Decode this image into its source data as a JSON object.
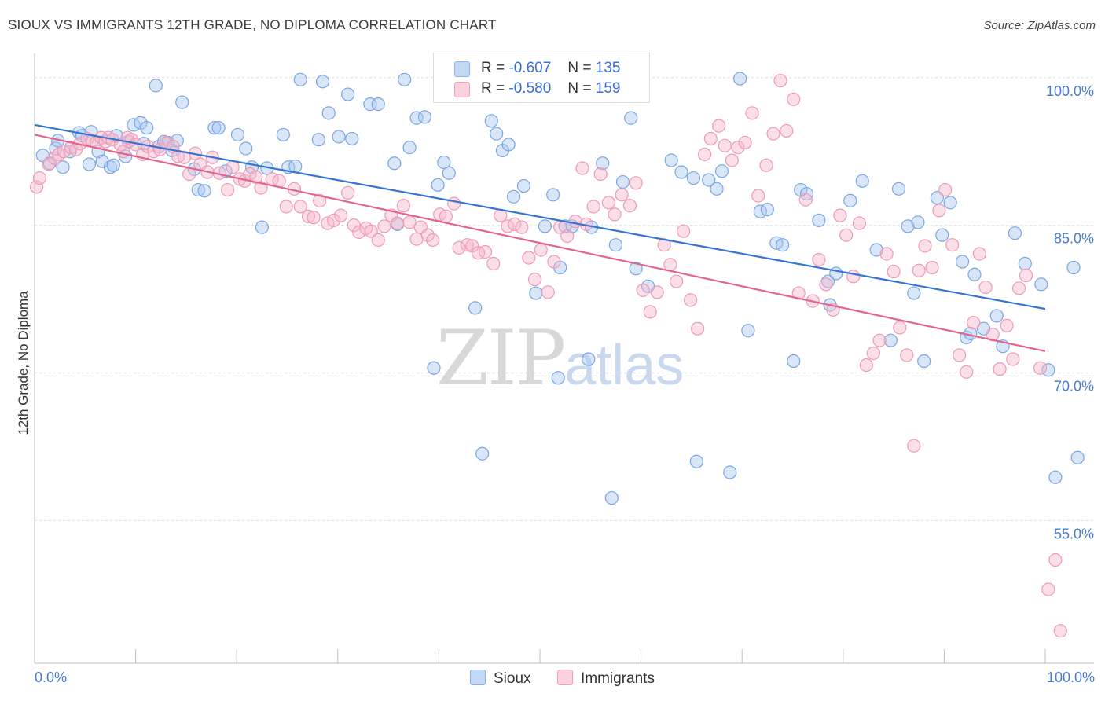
{
  "title": "SIOUX VS IMMIGRANTS 12TH GRADE, NO DIPLOMA CORRELATION CHART",
  "source": "Source: ZipAtlas.com",
  "watermark": {
    "zip": "ZIP",
    "atlas": "atlas"
  },
  "legend": {
    "r_label": "R =",
    "n_label": "N =",
    "rows": [
      {
        "series": "Sioux",
        "r": "-0.607",
        "n": "135",
        "color": "#a9c7f0"
      },
      {
        "series": "Immigrants",
        "r": "-0.580",
        "n": "159",
        "color": "#f7b8cc"
      }
    ]
  },
  "chart_data": {
    "type": "scatter",
    "title": "SIOUX VS IMMIGRANTS 12TH GRADE, NO DIPLOMA CORRELATION CHART",
    "xlabel": "",
    "ylabel": "12th Grade, No Diploma",
    "xlim": [
      0,
      100
    ],
    "ylim": [
      40.5,
      101.5
    ],
    "x_tick_labels": [
      "0.0%",
      "100.0%"
    ],
    "y_ticks": [
      100,
      85,
      70,
      55
    ],
    "y_tick_labels": [
      "100.0%",
      "85.0%",
      "70.0%",
      "55.0%"
    ],
    "grid": true,
    "legend_position": "top-center",
    "series": [
      {
        "name": "Sioux",
        "color": "#a9c7f0",
        "line_color": "#3575d4",
        "trend": {
          "x": [
            0,
            100
          ],
          "y": [
            95.2,
            76.5
          ]
        },
        "points": [
          [
            0.8,
            92.1
          ],
          [
            1.5,
            91.3
          ],
          [
            2.1,
            92.8
          ],
          [
            2.3,
            93.6
          ],
          [
            2.8,
            90.9
          ],
          [
            3.5,
            92.5
          ],
          [
            4.4,
            94.4
          ],
          [
            4.7,
            94.1
          ],
          [
            5.4,
            91.2
          ],
          [
            5.6,
            94.5
          ],
          [
            6.3,
            92.5
          ],
          [
            6.7,
            91.5
          ],
          [
            7.5,
            90.9
          ],
          [
            7.8,
            91.1
          ],
          [
            8.1,
            94.1
          ],
          [
            9.0,
            92.0
          ],
          [
            9.3,
            93.5
          ],
          [
            9.8,
            95.2
          ],
          [
            10.5,
            95.4
          ],
          [
            10.8,
            93.3
          ],
          [
            11.1,
            94.9
          ],
          [
            12.0,
            99.2
          ],
          [
            12.3,
            93.0
          ],
          [
            12.8,
            93.5
          ],
          [
            13.2,
            93.4
          ],
          [
            13.6,
            92.6
          ],
          [
            14.1,
            93.6
          ],
          [
            14.6,
            97.5
          ],
          [
            15.8,
            90.7
          ],
          [
            16.2,
            88.6
          ],
          [
            16.8,
            88.5
          ],
          [
            17.8,
            94.9
          ],
          [
            18.2,
            94.9
          ],
          [
            18.9,
            90.5
          ],
          [
            20.1,
            94.2
          ],
          [
            20.9,
            92.8
          ],
          [
            21.5,
            90.9
          ],
          [
            22.5,
            84.8
          ],
          [
            23.0,
            90.8
          ],
          [
            24.6,
            94.2
          ],
          [
            25.1,
            90.9
          ],
          [
            25.8,
            91.0
          ],
          [
            26.3,
            99.8
          ],
          [
            28.1,
            93.7
          ],
          [
            28.5,
            99.6
          ],
          [
            29.1,
            96.4
          ],
          [
            30.1,
            94.0
          ],
          [
            31.0,
            98.3
          ],
          [
            31.4,
            93.8
          ],
          [
            33.2,
            97.3
          ],
          [
            34.0,
            97.3
          ],
          [
            35.6,
            91.3
          ],
          [
            35.9,
            85.1
          ],
          [
            36.6,
            99.8
          ],
          [
            37.1,
            92.9
          ],
          [
            37.8,
            95.9
          ],
          [
            38.6,
            96.0
          ],
          [
            39.5,
            70.5
          ],
          [
            39.9,
            89.1
          ],
          [
            40.5,
            91.4
          ],
          [
            41.0,
            90.3
          ],
          [
            43.6,
            76.6
          ],
          [
            44.3,
            61.8
          ],
          [
            45.2,
            95.6
          ],
          [
            45.7,
            94.3
          ],
          [
            46.3,
            92.6
          ],
          [
            46.9,
            93.2
          ],
          [
            47.4,
            87.9
          ],
          [
            48.4,
            89.0
          ],
          [
            49.1,
            99.8
          ],
          [
            49.6,
            78.1
          ],
          [
            50.5,
            84.9
          ],
          [
            51.3,
            88.1
          ],
          [
            51.8,
            69.5
          ],
          [
            52.0,
            80.7
          ],
          [
            52.5,
            84.9
          ],
          [
            53.2,
            84.9
          ],
          [
            54.8,
            71.4
          ],
          [
            55.1,
            84.8
          ],
          [
            56.2,
            91.3
          ],
          [
            57.1,
            57.3
          ],
          [
            57.5,
            83.0
          ],
          [
            58.2,
            89.4
          ],
          [
            59.0,
            95.9
          ],
          [
            59.5,
            80.6
          ],
          [
            60.7,
            78.8
          ],
          [
            63.0,
            91.6
          ],
          [
            64.0,
            90.4
          ],
          [
            65.2,
            89.8
          ],
          [
            65.5,
            61.0
          ],
          [
            66.7,
            89.6
          ],
          [
            67.5,
            88.7
          ],
          [
            68.0,
            90.5
          ],
          [
            68.8,
            59.9
          ],
          [
            69.8,
            99.9
          ],
          [
            70.6,
            74.3
          ],
          [
            71.8,
            86.4
          ],
          [
            72.5,
            86.6
          ],
          [
            73.4,
            83.2
          ],
          [
            74.0,
            83.0
          ],
          [
            75.1,
            71.2
          ],
          [
            75.8,
            88.6
          ],
          [
            76.4,
            88.2
          ],
          [
            77.6,
            85.5
          ],
          [
            78.5,
            79.3
          ],
          [
            78.7,
            76.9
          ],
          [
            79.3,
            80.1
          ],
          [
            80.7,
            87.5
          ],
          [
            81.9,
            89.5
          ],
          [
            83.3,
            82.5
          ],
          [
            84.7,
            73.3
          ],
          [
            85.5,
            88.7
          ],
          [
            86.4,
            84.9
          ],
          [
            87.0,
            78.1
          ],
          [
            87.4,
            85.3
          ],
          [
            88.0,
            71.2
          ],
          [
            89.3,
            87.8
          ],
          [
            89.8,
            84.0
          ],
          [
            90.6,
            87.3
          ],
          [
            91.8,
            81.3
          ],
          [
            92.2,
            73.6
          ],
          [
            92.6,
            74.0
          ],
          [
            93.0,
            80.0
          ],
          [
            93.9,
            74.5
          ],
          [
            95.2,
            75.8
          ],
          [
            95.8,
            72.7
          ],
          [
            97.0,
            84.2
          ],
          [
            98.0,
            81.1
          ],
          [
            99.6,
            79.0
          ],
          [
            100.3,
            70.3
          ],
          [
            101.0,
            59.4
          ],
          [
            102.8,
            80.7
          ],
          [
            103.2,
            61.4
          ]
        ]
      },
      {
        "name": "Immigrants",
        "color": "#f7b8cc",
        "line_color": "#e26591",
        "trend": {
          "x": [
            0,
            100
          ],
          "y": [
            94.2,
            72.2
          ]
        },
        "points": [
          [
            0.2,
            88.9
          ],
          [
            0.5,
            89.8
          ],
          [
            1.4,
            91.2
          ],
          [
            2.0,
            91.8
          ],
          [
            2.4,
            92.2
          ],
          [
            2.9,
            92.5
          ],
          [
            3.6,
            92.9
          ],
          [
            4.1,
            92.7
          ],
          [
            4.5,
            93.3
          ],
          [
            5.2,
            93.8
          ],
          [
            5.7,
            93.6
          ],
          [
            6.1,
            93.4
          ],
          [
            6.6,
            93.9
          ],
          [
            7.0,
            93.5
          ],
          [
            7.3,
            93.9
          ],
          [
            7.7,
            93.7
          ],
          [
            8.5,
            93.2
          ],
          [
            8.8,
            92.5
          ],
          [
            9.2,
            93.9
          ],
          [
            9.6,
            93.7
          ],
          [
            10.0,
            93.2
          ],
          [
            10.7,
            92.2
          ],
          [
            11.2,
            93.0
          ],
          [
            11.8,
            92.5
          ],
          [
            12.4,
            92.7
          ],
          [
            13.0,
            93.4
          ],
          [
            13.7,
            93.0
          ],
          [
            14.2,
            92.0
          ],
          [
            14.8,
            91.9
          ],
          [
            15.3,
            90.2
          ],
          [
            15.9,
            92.3
          ],
          [
            16.4,
            91.2
          ],
          [
            17.1,
            90.4
          ],
          [
            17.6,
            91.9
          ],
          [
            18.3,
            90.3
          ],
          [
            19.1,
            88.6
          ],
          [
            19.6,
            90.9
          ],
          [
            20.3,
            89.7
          ],
          [
            20.8,
            89.5
          ],
          [
            21.3,
            90.2
          ],
          [
            21.9,
            89.9
          ],
          [
            22.4,
            88.8
          ],
          [
            23.5,
            89.7
          ],
          [
            24.2,
            89.5
          ],
          [
            24.9,
            86.9
          ],
          [
            25.7,
            88.7
          ],
          [
            26.3,
            86.9
          ],
          [
            27.1,
            85.9
          ],
          [
            27.6,
            85.8
          ],
          [
            28.2,
            87.5
          ],
          [
            29.0,
            85.2
          ],
          [
            29.6,
            85.5
          ],
          [
            30.3,
            86.0
          ],
          [
            31.0,
            88.3
          ],
          [
            31.6,
            85.0
          ],
          [
            32.1,
            84.3
          ],
          [
            32.8,
            84.7
          ],
          [
            33.3,
            84.4
          ],
          [
            34.0,
            83.5
          ],
          [
            34.6,
            84.9
          ],
          [
            35.3,
            86.0
          ],
          [
            35.9,
            85.2
          ],
          [
            36.5,
            87.0
          ],
          [
            37.1,
            85.3
          ],
          [
            37.8,
            83.6
          ],
          [
            38.2,
            84.8
          ],
          [
            38.9,
            84.0
          ],
          [
            39.4,
            83.5
          ],
          [
            40.1,
            86.1
          ],
          [
            40.7,
            85.9
          ],
          [
            41.5,
            87.2
          ],
          [
            42.0,
            82.7
          ],
          [
            42.8,
            83.0
          ],
          [
            43.3,
            82.9
          ],
          [
            43.9,
            82.2
          ],
          [
            44.6,
            82.3
          ],
          [
            45.4,
            81.1
          ],
          [
            46.1,
            86.0
          ],
          [
            46.8,
            84.9
          ],
          [
            47.5,
            85.1
          ],
          [
            48.2,
            84.8
          ],
          [
            48.9,
            81.7
          ],
          [
            49.5,
            79.5
          ],
          [
            50.1,
            82.5
          ],
          [
            50.8,
            78.2
          ],
          [
            51.4,
            81.3
          ],
          [
            52.0,
            84.8
          ],
          [
            52.7,
            83.9
          ],
          [
            53.5,
            85.4
          ],
          [
            54.2,
            90.8
          ],
          [
            54.6,
            85.1
          ],
          [
            55.3,
            86.9
          ],
          [
            56.0,
            90.2
          ],
          [
            56.8,
            87.3
          ],
          [
            57.4,
            86.1
          ],
          [
            58.1,
            88.1
          ],
          [
            58.9,
            87.0
          ],
          [
            59.5,
            89.3
          ],
          [
            60.2,
            78.4
          ],
          [
            60.9,
            76.2
          ],
          [
            61.6,
            78.2
          ],
          [
            62.3,
            83.0
          ],
          [
            62.9,
            81.0
          ],
          [
            63.5,
            79.3
          ],
          [
            64.2,
            84.4
          ],
          [
            64.9,
            77.4
          ],
          [
            65.6,
            74.5
          ],
          [
            66.3,
            92.2
          ],
          [
            66.9,
            93.8
          ],
          [
            67.7,
            95.1
          ],
          [
            68.3,
            93.1
          ],
          [
            69.0,
            91.6
          ],
          [
            69.6,
            92.9
          ],
          [
            70.3,
            93.4
          ],
          [
            71.0,
            96.4
          ],
          [
            71.6,
            88.0
          ],
          [
            72.4,
            91.1
          ],
          [
            73.1,
            94.3
          ],
          [
            73.8,
            99.7
          ],
          [
            74.4,
            94.6
          ],
          [
            75.1,
            97.8
          ],
          [
            75.6,
            78.1
          ],
          [
            76.3,
            87.6
          ],
          [
            77.0,
            77.3
          ],
          [
            77.6,
            81.5
          ],
          [
            78.3,
            79.0
          ],
          [
            79.0,
            76.4
          ],
          [
            79.7,
            86.0
          ],
          [
            80.3,
            84.0
          ],
          [
            81.0,
            79.8
          ],
          [
            81.6,
            85.2
          ],
          [
            82.3,
            70.8
          ],
          [
            83.0,
            72.0
          ],
          [
            83.6,
            73.3
          ],
          [
            84.3,
            82.1
          ],
          [
            85.0,
            80.3
          ],
          [
            85.6,
            74.6
          ],
          [
            86.3,
            71.8
          ],
          [
            87.0,
            62.6
          ],
          [
            87.5,
            80.4
          ],
          [
            88.1,
            82.9
          ],
          [
            88.8,
            80.7
          ],
          [
            89.5,
            86.5
          ],
          [
            90.1,
            88.6
          ],
          [
            90.8,
            83.0
          ],
          [
            91.5,
            71.8
          ],
          [
            92.2,
            70.1
          ],
          [
            92.9,
            75.1
          ],
          [
            93.5,
            82.1
          ],
          [
            94.1,
            78.7
          ],
          [
            94.8,
            73.9
          ],
          [
            95.5,
            70.4
          ],
          [
            96.2,
            74.8
          ],
          [
            96.8,
            71.4
          ],
          [
            97.4,
            78.6
          ],
          [
            98.1,
            79.9
          ],
          [
            99.5,
            70.5
          ],
          [
            100.3,
            48.0
          ],
          [
            101.0,
            51.0
          ],
          [
            101.5,
            43.8
          ]
        ]
      }
    ]
  }
}
